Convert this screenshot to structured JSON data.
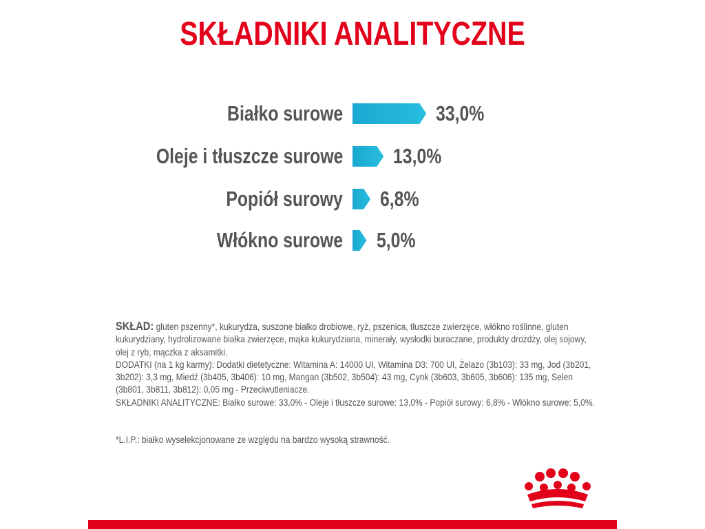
{
  "title": "SKŁADNIKI ANALITYCZNE",
  "chart_data": {
    "type": "bar",
    "orientation": "horizontal",
    "categories": [
      "Białko surowe",
      "Oleje i tłuszcze surowe",
      "Popiół surowy",
      "Włókno surowe"
    ],
    "values": [
      33.0,
      13.0,
      6.8,
      5.0
    ],
    "value_labels": [
      "33,0%",
      "13,0%",
      "6,8%",
      "5,0%"
    ],
    "unit": "%",
    "bar_color": "#1aa8d0",
    "grid": false
  },
  "composition": {
    "heading": "SKŁAD:",
    "ingredients": " gluten pszenny*, kukurydza, suszone białko drobiowe, ryż, pszenica, tłuszcze zwierzęce, włókno roślinne, gluten kukurydziany, hydrolizowane białka zwierzęce, mąka kukurydziana, minerały, wysłodki buraczane, produkty drożdży, olej sojowy, olej z ryb, mączka z aksamitki.",
    "additives": "DODATKI (na 1 kg karmy): Dodatki dietetyczne: Witamina A: 14000 UI, Witamina D3: 700 UI, Żelazo (3b103): 33 mg, Jod (3b201, 3b202): 3,3 mg, Miedź (3b405, 3b406): 10 mg, Mangan (3b502, 3b504): 43 mg, Cynk (3b603, 3b605, 3b606): 135 mg, Selen (3b801, 3b811, 3b812): 0,05 mg - Przeciwutleniacze.",
    "analytical": "SKŁADNIKI ANALITYCZNE: Białko surowe: 33,0% - Oleje i tłuszcze surowe: 13,0% - Popiół surowy: 6,8% - Włókno surowe: 5,0%.",
    "footnote": "*L.I.P.: białko wyselekcjonowane ze względu na bardzo wysoką strawność."
  },
  "colors": {
    "brand_red": "#e2001a",
    "text_gray": "#555555"
  },
  "logo": "royal-canin-crown"
}
